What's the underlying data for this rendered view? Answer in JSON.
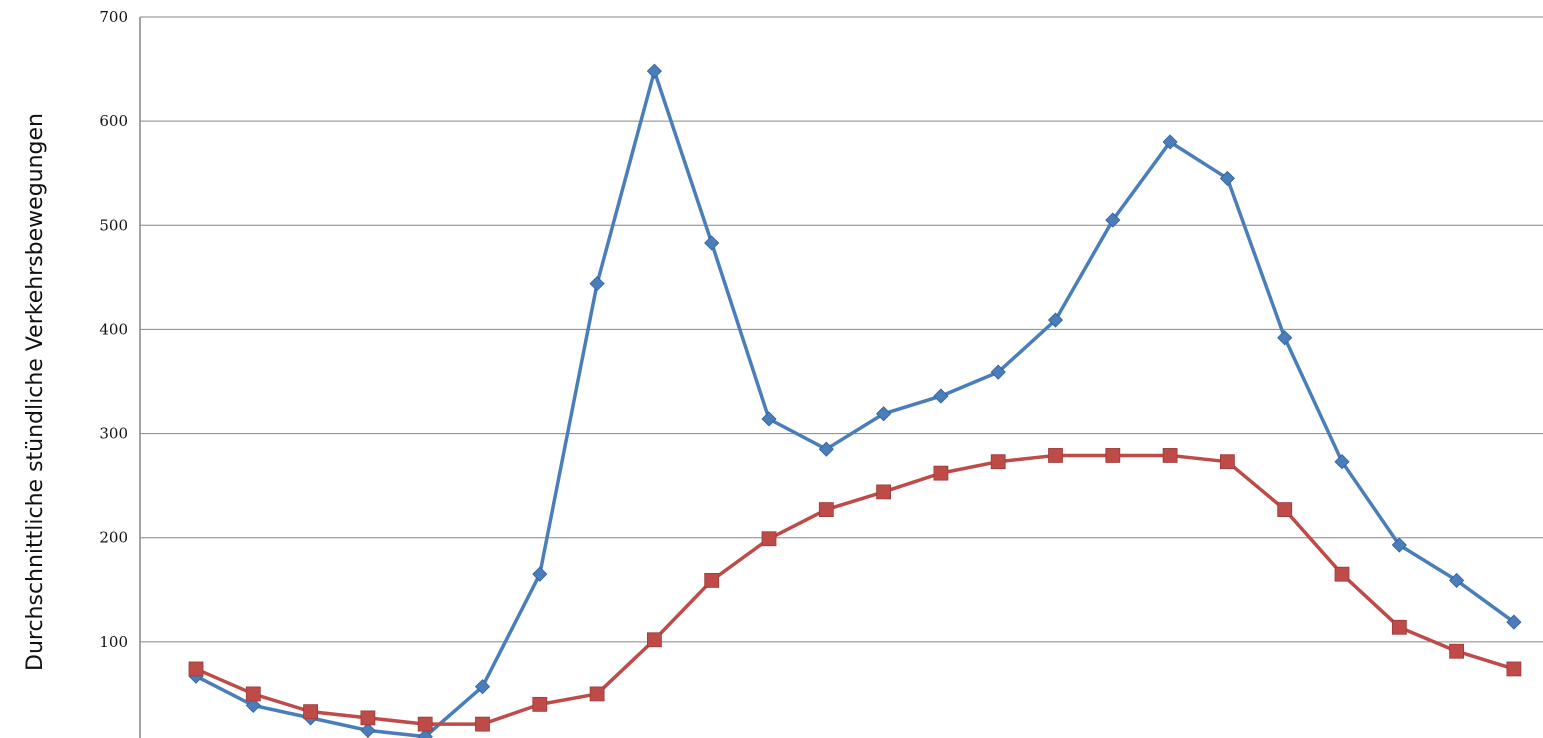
{
  "chart_data": {
    "type": "line",
    "ylabel": "Durchschnittliche stündliche Verkehrsbewegungen",
    "ylim": [
      0,
      700
    ],
    "yticks": [
      100,
      200,
      300,
      400,
      500,
      600,
      700
    ],
    "grid": true,
    "x": [
      0,
      1,
      2,
      3,
      4,
      5,
      6,
      7,
      8,
      9,
      10,
      11,
      12,
      13,
      14,
      15,
      16,
      17,
      18,
      19,
      20,
      21,
      22,
      23
    ],
    "series": [
      {
        "color": "#4a7ebb",
        "marker": "diamond",
        "values": [
          67,
          39,
          27,
          15,
          9,
          57,
          165,
          444,
          648,
          483,
          314,
          285,
          319,
          336,
          359,
          409,
          505,
          580,
          545,
          392,
          273,
          193,
          159,
          119
        ]
      },
      {
        "color": "#be4b48",
        "marker": "square",
        "values": [
          74,
          50,
          33,
          27,
          21,
          21,
          40,
          50,
          102,
          159,
          199,
          227,
          244,
          262,
          273,
          279,
          279,
          279,
          273,
          227,
          165,
          114,
          91,
          74
        ]
      }
    ]
  }
}
